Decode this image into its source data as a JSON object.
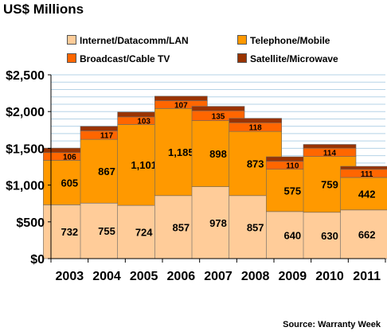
{
  "title": "US$ Millions",
  "source": "Source: Warranty Week",
  "chart_data": {
    "type": "bar",
    "stacked": true,
    "categories": [
      "2003",
      "2004",
      "2005",
      "2006",
      "2007",
      "2008",
      "2009",
      "2010",
      "2011"
    ],
    "series": [
      {
        "name": "Internet/Datacomm/LAN",
        "color": "#FFCC99",
        "values": [
          732,
          755,
          724,
          857,
          978,
          857,
          640,
          630,
          662
        ]
      },
      {
        "name": "Telephone/Mobile",
        "color": "#FF9900",
        "values": [
          605,
          867,
          1101,
          1185,
          898,
          873,
          575,
          759,
          442
        ]
      },
      {
        "name": "Broadcast/Cable TV",
        "color": "#FF6600",
        "values": [
          106,
          117,
          103,
          107,
          135,
          118,
          110,
          114,
          111
        ]
      },
      {
        "name": "Satellite/Microwave",
        "color": "#993300",
        "values": [
          60,
          60,
          65,
          60,
          60,
          60,
          60,
          50,
          40
        ]
      }
    ],
    "data_labels": [
      [
        "732",
        "755",
        "724",
        "857",
        "978",
        "857",
        "640",
        "630",
        "662"
      ],
      [
        "605",
        "867",
        "1,101",
        "1,185",
        "898",
        "873",
        "575",
        "759",
        "442"
      ],
      [
        "106",
        "117",
        "103",
        "107",
        "135",
        "118",
        "110",
        "114",
        "111"
      ]
    ],
    "y_ticks": [
      "$0",
      "$500",
      "$1,000",
      "$1,500",
      "$2,000",
      "$2,500"
    ],
    "ylim": [
      0,
      2500
    ],
    "grid": true,
    "legend_position": "top"
  }
}
